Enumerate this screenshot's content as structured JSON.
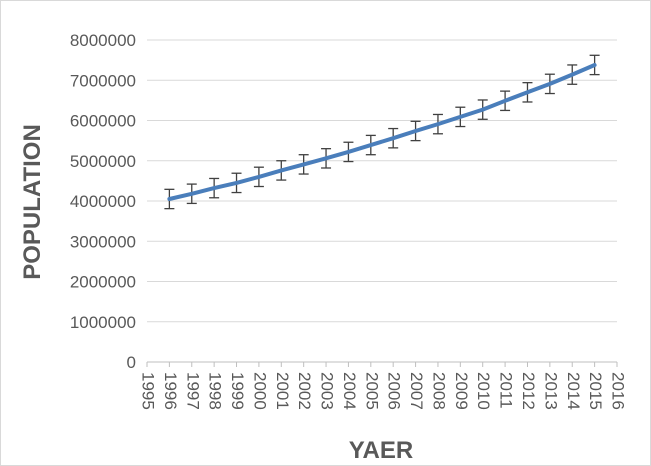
{
  "chart_data": {
    "type": "line",
    "title": "",
    "xlabel": "YAER",
    "ylabel": "POPULATION",
    "xlim": [
      1995,
      2016
    ],
    "ylim": [
      0,
      8000000
    ],
    "x_ticks": [
      1995,
      1996,
      1997,
      1998,
      1999,
      2000,
      2001,
      2002,
      2003,
      2004,
      2005,
      2006,
      2007,
      2008,
      2009,
      2010,
      2011,
      2012,
      2013,
      2014,
      2015,
      2016
    ],
    "y_ticks": [
      0,
      1000000,
      2000000,
      3000000,
      4000000,
      5000000,
      6000000,
      7000000,
      8000000
    ],
    "grid": "horizontal",
    "legend": "none",
    "series_color": "#4a7ebb",
    "error_bar_color": "#404040",
    "series": [
      {
        "x": [
          1996,
          1997,
          1998,
          1999,
          2000,
          2001,
          2002,
          2003,
          2004,
          2005,
          2006,
          2007,
          2008,
          2009,
          2010,
          2011,
          2012,
          2013,
          2014,
          2015
        ],
        "values": [
          4050000,
          4180000,
          4320000,
          4450000,
          4600000,
          4760000,
          4910000,
          5060000,
          5220000,
          5390000,
          5560000,
          5740000,
          5910000,
          6090000,
          6270000,
          6490000,
          6700000,
          6910000,
          7140000,
          7380000
        ],
        "error": 240000
      }
    ]
  }
}
